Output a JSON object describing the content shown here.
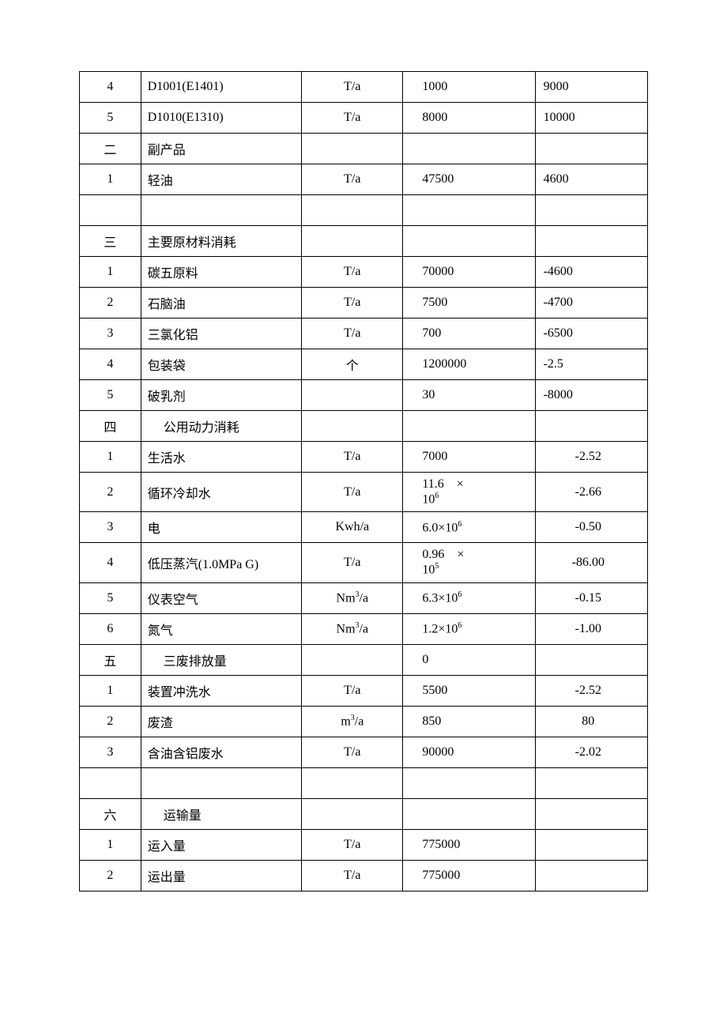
{
  "table": {
    "columns": [
      "idx",
      "name",
      "unit",
      "qty",
      "val"
    ],
    "col_classes": [
      "col-idx",
      "col-name",
      "col-unit",
      "col-qty",
      "col-val"
    ],
    "font_size": 16,
    "border_color": "#000000",
    "background_color": "#ffffff",
    "rows": [
      {
        "idx": "4",
        "name": "D1001(E1401)",
        "unit": "T/a",
        "qty": "1000",
        "val": "9000"
      },
      {
        "idx": "5",
        "name": "D1010(E1310)",
        "unit": "T/a",
        "qty": "8000",
        "val": "10000"
      },
      {
        "idx": "二",
        "name": "副产品",
        "unit": "",
        "qty": "",
        "val": ""
      },
      {
        "idx": "1",
        "name": "轻油",
        "unit": "T/a",
        "qty": "47500",
        "val": "4600"
      },
      {
        "idx": "",
        "name": "",
        "unit": "",
        "qty": "",
        "val": ""
      },
      {
        "idx": "三",
        "name": "主要原材料消耗",
        "unit": "",
        "qty": "",
        "val": ""
      },
      {
        "idx": "1",
        "name": "碳五原料",
        "unit": "T/a",
        "qty": "70000",
        "val": "-4600"
      },
      {
        "idx": "2",
        "name": "石脑油",
        "unit": "T/a",
        "qty": "7500",
        "val": "-4700"
      },
      {
        "idx": "3",
        "name": "三氯化铝",
        "unit": "T/a",
        "qty": "700",
        "val": "-6500"
      },
      {
        "idx": "4",
        "name": "包装袋",
        "unit": "个",
        "qty": "1200000",
        "val": "-2.5"
      },
      {
        "idx": "5",
        "name": "破乳剂",
        "unit": "",
        "qty": "30",
        "val": "-8000"
      },
      {
        "idx": "四",
        "name": "公用动力消耗",
        "name_indent": true,
        "unit": "",
        "qty": "",
        "val": ""
      },
      {
        "idx": "1",
        "name": "生活水",
        "unit": "T/a",
        "qty": "7000",
        "val": "-2.52",
        "val_center": true
      },
      {
        "idx": "2",
        "name": "循环冷却水",
        "unit": "T/a",
        "qty_html": "11.6 &nbsp;&nbsp;&nbsp;×<br>10<sup>6</sup>",
        "val": "-2.66",
        "val_center": true
      },
      {
        "idx": "3",
        "name": "电",
        "unit": "Kwh/a",
        "qty_html": "6.0×10<sup>6</sup>",
        "val": "-0.50",
        "val_center": true
      },
      {
        "idx": "4",
        "name": "低压蒸汽(1.0MPa G)",
        "unit": "T/a",
        "qty_html": "0.96 &nbsp;&nbsp;&nbsp;×<br>10<sup>5</sup>",
        "val": "-86.00",
        "val_center": true
      },
      {
        "idx": "5",
        "name": "仪表空气",
        "unit_html": "Nm<sup>3</sup>/a",
        "qty_html": "6.3×10<sup>6</sup>",
        "val": "-0.15",
        "val_center": true
      },
      {
        "idx": "6",
        "name": "氮气",
        "unit_html": "Nm<sup>3</sup>/a",
        "qty_html": "1.2×10<sup>6</sup>",
        "val": "-1.00",
        "val_center": true
      },
      {
        "idx": "五",
        "name": "三废排放量",
        "name_indent": true,
        "unit": "",
        "qty": "0",
        "val": ""
      },
      {
        "idx": "1",
        "name": "装置冲洗水",
        "unit": "T/a",
        "qty": "5500",
        "val": "-2.52",
        "val_center": true
      },
      {
        "idx": "2",
        "name": "废渣",
        "unit_html": "m<sup>3</sup>/a",
        "qty": "850",
        "val": "80",
        "val_center": true
      },
      {
        "idx": "3",
        "name": "含油含铝废水",
        "unit": "T/a",
        "qty": "90000",
        "val": "-2.02",
        "val_center": true
      },
      {
        "idx": "",
        "name": "",
        "unit": "",
        "qty": "",
        "val": ""
      },
      {
        "idx": "六",
        "name": "运输量",
        "name_indent": true,
        "unit": "",
        "qty": "",
        "val": ""
      },
      {
        "idx": "1",
        "name": "运入量",
        "unit": "T/a",
        "qty": "775000",
        "val": ""
      },
      {
        "idx": "2",
        "name": "运出量",
        "unit": "T/a",
        "qty": "775000",
        "val": ""
      }
    ]
  }
}
